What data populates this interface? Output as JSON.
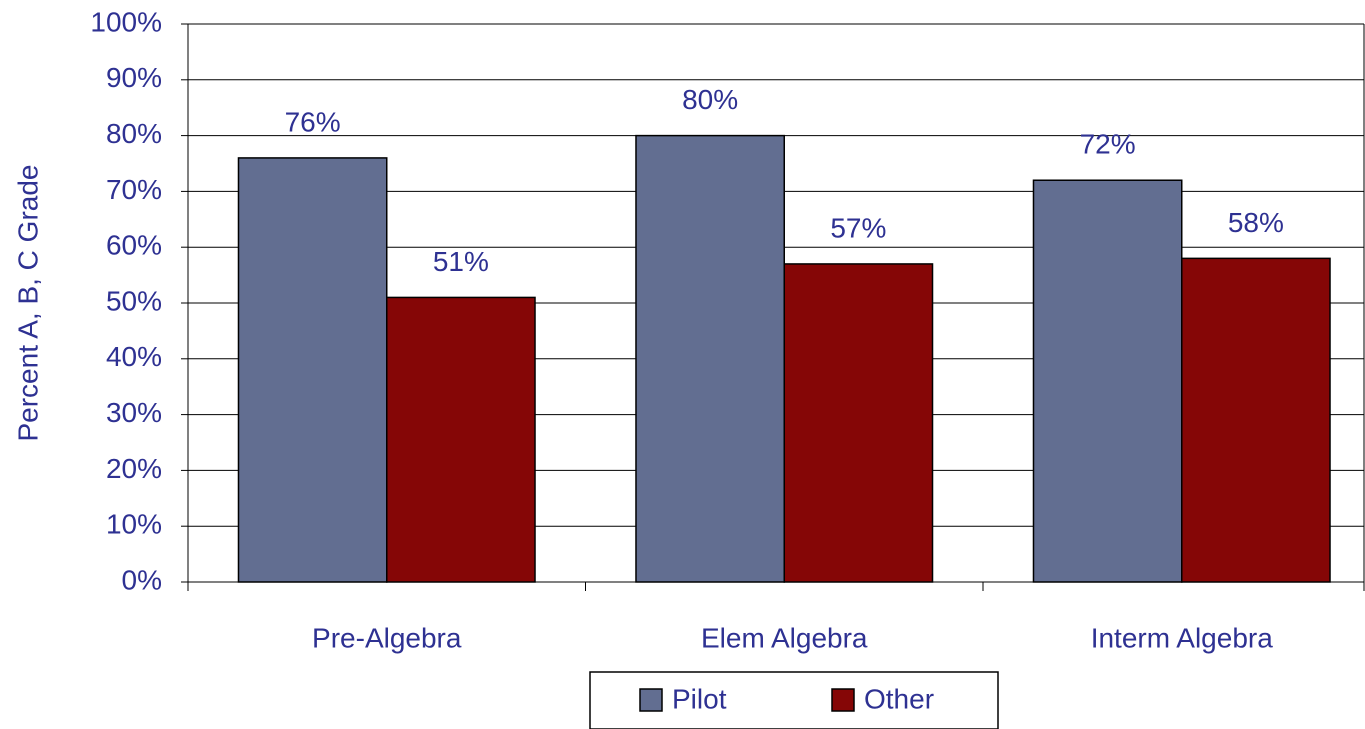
{
  "chart_data": {
    "type": "bar",
    "y_label": "Percent A, B, C Grade",
    "categories": [
      "Pre-Algebra",
      "Elem Algebra",
      "Interm Algebra"
    ],
    "series": [
      {
        "name": "Pilot",
        "color": "#626e91",
        "values": [
          76,
          80,
          72
        ],
        "value_labels": [
          "76%",
          "80%",
          "72%"
        ]
      },
      {
        "name": "Other",
        "color": "#850606",
        "values": [
          51,
          57,
          58
        ],
        "value_labels": [
          "51%",
          "57%",
          "58%"
        ]
      }
    ],
    "ylim": [
      0,
      100
    ],
    "yticks": [
      {
        "value": 0,
        "label": "0%"
      },
      {
        "value": 10,
        "label": "10%"
      },
      {
        "value": 20,
        "label": "20%"
      },
      {
        "value": 30,
        "label": "30%"
      },
      {
        "value": 40,
        "label": "40%"
      },
      {
        "value": 50,
        "label": "50%"
      },
      {
        "value": 60,
        "label": "60%"
      },
      {
        "value": 70,
        "label": "70%"
      },
      {
        "value": 80,
        "label": "80%"
      },
      {
        "value": 90,
        "label": "90%"
      },
      {
        "value": 100,
        "label": "100%"
      }
    ],
    "grid": true,
    "legend": "bottom"
  }
}
